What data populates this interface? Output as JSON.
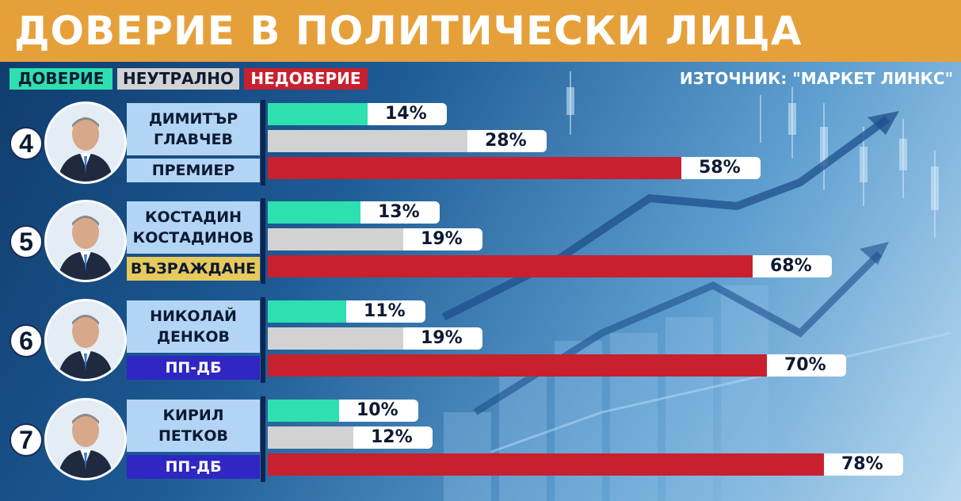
{
  "header": {
    "title": "ДОВЕРИЕ В ПОЛИТИЧЕСКИ ЛИЦА"
  },
  "legend": [
    {
      "label": "ДОВЕРИЕ",
      "bg": "#2ee0b0",
      "fg": "#0c1a33"
    },
    {
      "label": "НЕУТРАЛНО",
      "bg": "#d2d2d2",
      "fg": "#0c1a33"
    },
    {
      "label": "НЕДОВЕРИЕ",
      "bg": "#c8202e",
      "fg": "#ffffff"
    }
  ],
  "source": "ИЗТОЧНИК: \"МАРКЕТ ЛИНКС\"",
  "colors": {
    "trust": "#2ee0b0",
    "neutral": "#d2d2d2",
    "distrust": "#c8202e",
    "accent": "#e6a03a"
  },
  "people": [
    {
      "number": "4",
      "name_line1": "ДИМИТЪР",
      "name_line2": "ГЛАВЧЕВ",
      "role": "ПРЕМИЕР",
      "role_bg": "#b3d5f5",
      "role_fg": "#0c1a33"
    },
    {
      "number": "5",
      "name_line1": "КОСТАДИН",
      "name_line2": "КОСТАДИНОВ",
      "role": "ВЪЗРАЖДАНЕ",
      "role_bg": "#e7c95d",
      "role_fg": "#0c1a33"
    },
    {
      "number": "6",
      "name_line1": "НИКОЛАЙ",
      "name_line2": "ДЕНКОВ",
      "role": "ПП-ДБ",
      "role_bg": "#2f26c4",
      "role_fg": "#ffffff"
    },
    {
      "number": "7",
      "name_line1": "КИРИЛ",
      "name_line2": "ПЕТКОВ",
      "role": "ПП-ДБ",
      "role_bg": "#2f26c4",
      "role_fg": "#ffffff"
    }
  ],
  "chart_data": {
    "type": "bar",
    "orientation": "horizontal",
    "title": "ДОВЕРИЕ В ПОЛИТИЧЕСКИ ЛИЦА",
    "categories": [
      "ДИМИТЪР ГЛАВЧЕВ",
      "КОСТАДИН КОСТАДИНОВ",
      "НИКОЛАЙ ДЕНКОВ",
      "КИРИЛ ПЕТКОВ"
    ],
    "series": [
      {
        "name": "ДОВЕРИЕ",
        "values": [
          14,
          13,
          11,
          10
        ],
        "labels": [
          "14%",
          "13%",
          "11%",
          "10%"
        ]
      },
      {
        "name": "НЕУТРАЛНО",
        "values": [
          28,
          19,
          19,
          12
        ],
        "labels": [
          "28%",
          "19%",
          "19%",
          "12%"
        ]
      },
      {
        "name": "НЕДОВЕРИЕ",
        "values": [
          58,
          68,
          70,
          78
        ],
        "labels": [
          "58%",
          "68%",
          "70%",
          "78%"
        ]
      }
    ],
    "unit": "%",
    "xlim": [
      0,
      100
    ],
    "legend_position": "top-left"
  }
}
